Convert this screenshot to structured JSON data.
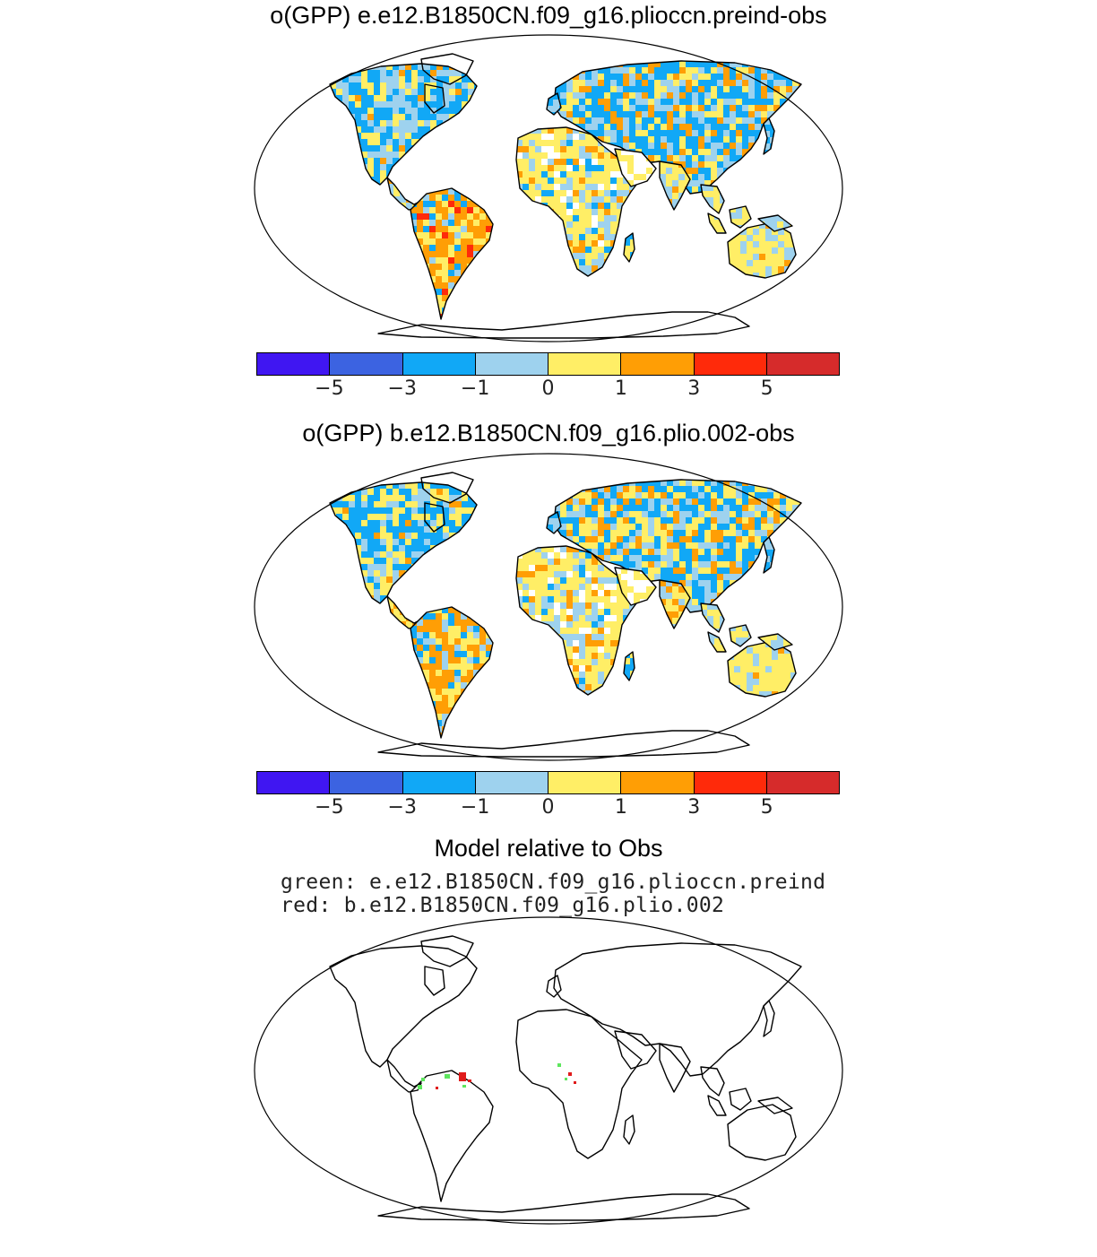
{
  "panels": [
    {
      "title": "o(GPP) e.e12.B1850CN.f09_g16.plioccn.preind-obs"
    },
    {
      "title": "o(GPP) b.e12.B1850CN.f09_g16.plio.002-obs"
    }
  ],
  "comparison": {
    "title": "Model relative to Obs",
    "green_label": "green: e.e12.B1850CN.f09_g16.plioccn.preind",
    "red_label": "red: b.e12.B1850CN.f09_g16.plio.002"
  },
  "colorbar": {
    "colors": [
      "#4016f2",
      "#3c63e1",
      "#11a8f6",
      "#9ed2ee",
      "#ffee66",
      "#ff9e05",
      "#ff2a0a",
      "#d62b2b"
    ],
    "tick_labels": [
      "−5",
      "−3",
      "−1",
      "0",
      "1",
      "3",
      "5"
    ]
  },
  "map_colors": {
    "ocean": "#ffffff",
    "coast": "#000000",
    "green_marker": "#5ee65e",
    "red_marker": "#e01b1b"
  }
}
